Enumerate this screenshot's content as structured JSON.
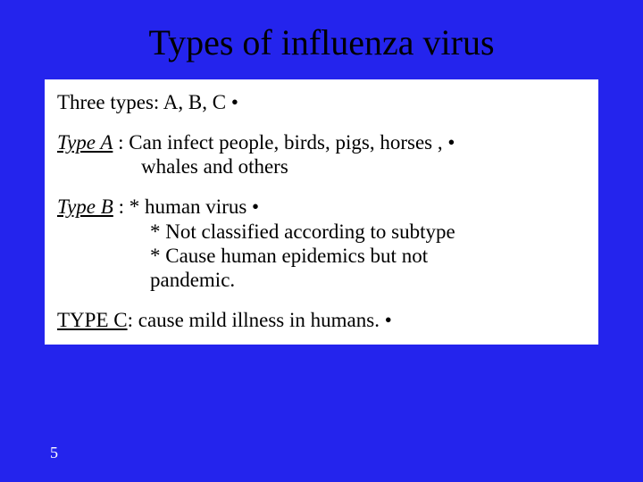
{
  "colors": {
    "background": "#2424ed",
    "content_bg": "#ffffff",
    "text": "#000000",
    "slide_num": "#ffffff"
  },
  "title": "Types of influenza virus",
  "point1": "Three types: A, B, C   •",
  "typeA_label": "Type A",
  "typeA_line1": " : Can infect people, birds, pigs, horses ,   •",
  "typeA_line2": "whales and others",
  "typeB_label": "Type B",
  "typeB_line1": " : * human virus   •",
  "typeB_line2": "* Not classified according to subtype",
  "typeB_line3": "* Cause human epidemics but not",
  "typeB_line4": " pandemic.",
  "typeC_label": "TYPE C",
  "typeC_line1": ": cause mild illness in humans.   •",
  "slide_number": "5",
  "fonts": {
    "family": "Times New Roman",
    "title_size": 40,
    "body_size": 23,
    "slide_num_size": 18
  }
}
